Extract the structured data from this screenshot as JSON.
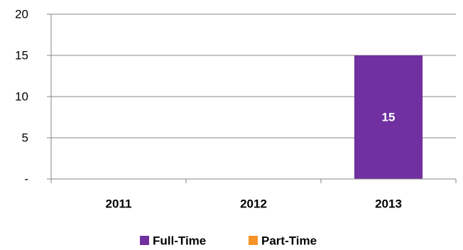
{
  "chart_data": {
    "type": "bar",
    "stacked": true,
    "categories": [
      "2011",
      "2012",
      "2013"
    ],
    "series": [
      {
        "name": "Full-Time",
        "color": "#7030a0",
        "values": [
          0,
          0,
          15
        ]
      },
      {
        "name": "Part-Time",
        "color": "#f79428",
        "values": [
          0,
          0,
          0
        ]
      }
    ],
    "ylim": [
      0,
      20
    ],
    "yticks": [
      {
        "value": 0,
        "label": "-"
      },
      {
        "value": 5,
        "label": "5"
      },
      {
        "value": 10,
        "label": "10"
      },
      {
        "value": 15,
        "label": "15"
      },
      {
        "value": 20,
        "label": "20"
      }
    ],
    "data_labels": [
      {
        "series": 0,
        "category": 2,
        "text": "15"
      }
    ],
    "grid": true,
    "legend": "bottom",
    "colors": {
      "grid": "#868686",
      "axis": "#868686"
    }
  }
}
